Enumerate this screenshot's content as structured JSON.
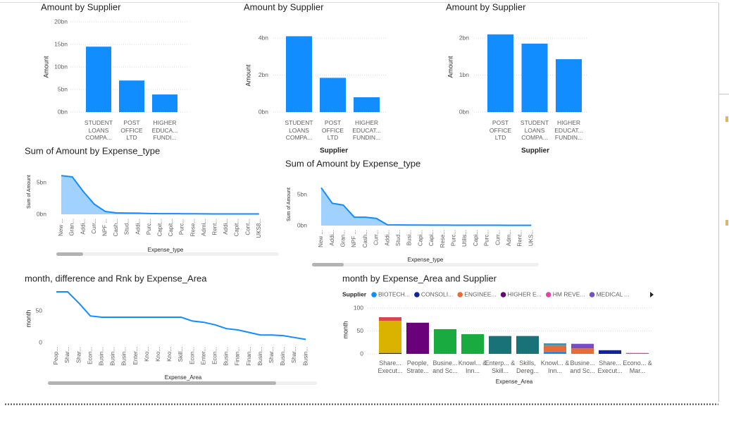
{
  "chart_data": [
    {
      "type": "bar",
      "title": "Amount by Supplier",
      "y_label": "Amount",
      "categories": [
        "STUDENT LOANS COMPA...",
        "POST OFFICE LTD",
        "HIGHER EDUCA... FUNDI..."
      ],
      "values": [
        14.5,
        7,
        3.9
      ],
      "color": "#118DFF",
      "ylim": [
        0,
        20
      ],
      "yticks": [
        {
          "value": 0,
          "label": "0bn"
        },
        {
          "value": 5,
          "label": "5bn"
        },
        {
          "value": 10,
          "label": "10bn"
        },
        {
          "value": 15,
          "label": "15bn"
        },
        {
          "value": 20,
          "label": "20bn"
        }
      ],
      "grid": true
    },
    {
      "type": "bar",
      "title": "Amount by Supplier",
      "y_label": "Amount",
      "x_label": "Supplier",
      "categories": [
        "STUDENT LOANS COMPA...",
        "POST OFFICE LTD",
        "HIGHER EDUCAT... FUNDIN..."
      ],
      "values": [
        4.1,
        1.85,
        0.8
      ],
      "color": "#118DFF",
      "ylim": [
        0,
        4.5
      ],
      "yticks": [
        {
          "value": 0,
          "label": "0bn"
        },
        {
          "value": 2,
          "label": "2bn"
        },
        {
          "value": 4,
          "label": "4bn"
        }
      ],
      "grid": true
    },
    {
      "type": "bar",
      "title": "Amount by Supplier",
      "y_label": "Amount",
      "x_label": "Supplier",
      "categories": [
        "POST OFFICE LTD",
        "STUDENT LOANS COMPA...",
        "HIGHER EDUCAT... FUNDIN..."
      ],
      "values": [
        2.1,
        1.85,
        1.43
      ],
      "color": "#118DFF",
      "ylim": [
        0,
        2.2
      ],
      "yticks": [
        {
          "value": 0,
          "label": "0bn"
        },
        {
          "value": 1,
          "label": "1bn"
        },
        {
          "value": 2,
          "label": "2bn"
        }
      ],
      "grid": true
    },
    {
      "type": "area",
      "title": "Sum of Amount by Expense_type",
      "y_label": "Sum of Amount",
      "x_label": "Expense_type",
      "categories": [
        "New ...",
        "Gran...",
        "Addi...",
        "Curr...",
        "NPF ...",
        "Cash...",
        "Stud...",
        "Addi...",
        "Purc...",
        "Capit...",
        "Capit...",
        "Purc...",
        "Rese...",
        "Admi...",
        "Rent...",
        "Addi...",
        "Capit...",
        "Cont...",
        "UKS8..."
      ],
      "values": [
        6.1,
        5.9,
        3.6,
        1.6,
        0.45,
        0.22,
        0.2,
        0.18,
        0.12,
        0.1,
        0.1,
        0.09,
        0.08,
        0.07,
        0.06,
        0.06,
        0.05,
        0.05,
        0.05
      ],
      "color": "#118DFF",
      "ylim": [
        0,
        6.5
      ],
      "yticks": [
        {
          "value": 0,
          "label": "0bn"
        },
        {
          "value": 5,
          "label": "5bn"
        }
      ],
      "grid": false
    },
    {
      "type": "area",
      "title": "Sum of Amount by Expense_type",
      "y_label": "Sum of Amount",
      "x_label": "Expense_type",
      "categories": [
        "New ...",
        "Addi...",
        "Gran...",
        "NPF ...",
        "Cash...",
        "Curr...",
        "Addi...",
        "Stud...",
        "Busi...",
        "Capi...",
        "Capi...",
        "Rese...",
        "Purc...",
        "Utilis...",
        "Capi...",
        "Purc...",
        "Curr...",
        "Adm...",
        "Rent...",
        "UKS..."
      ],
      "values": [
        6.1,
        3.6,
        3.3,
        1.35,
        1.35,
        1.15,
        0.12,
        0.1,
        0.09,
        0.08,
        0.07,
        0.07,
        0.06,
        0.06,
        0.05,
        0.05,
        0.05,
        0.04,
        0.04,
        0.04
      ],
      "color": "#118DFF",
      "ylim": [
        0,
        6.5
      ],
      "yticks": [
        {
          "value": 0,
          "label": "0bn"
        },
        {
          "value": 5,
          "label": "5bn"
        }
      ],
      "grid": false
    },
    {
      "type": "line",
      "title": "month, difference and Rnk by Expense_Area",
      "y_label": "month",
      "x_label": "Expense_Area",
      "categories": [
        "Peop...",
        "Shar...",
        "Shar...",
        "Econ...",
        "Busin...",
        "Busin...",
        "Busin...",
        "Enter...",
        "Kno...",
        "Kno...",
        "Kno...",
        "Skill...",
        "Econ...",
        "Enter...",
        "Econ...",
        "Busin...",
        "Finan...",
        "Finan...",
        "Busin...",
        "Shar...",
        "Busin...",
        "Shar...",
        "Busin..."
      ],
      "values": [
        80,
        80,
        62,
        42,
        40,
        40,
        40,
        40,
        40,
        40,
        40,
        40,
        34,
        32,
        28,
        22,
        20,
        16,
        12,
        12,
        11,
        8,
        5
      ],
      "color": "#118DFF",
      "ylim": [
        0,
        85
      ],
      "yticks": [
        0,
        50
      ],
      "grid": false
    },
    {
      "type": "bar",
      "stacked": true,
      "title": "month by Expense_Area and Supplier",
      "y_label": "month",
      "x_label": "Expense_Area",
      "legend_title": "Supplier",
      "categories": [
        "Share... Execut...",
        "People, Strate...",
        "Busine... and Sc...",
        "Knowl... & Inn...",
        "Enterp... & Skill...",
        "Skills, Dereg...",
        "Knowl... & Inn...",
        "Busine... and Sc...",
        "Share... Execut...",
        "Econo... & Mar..."
      ],
      "series": [
        {
          "name": "BIOTECH...",
          "color": "#118DFF",
          "values": [
            null,
            null,
            null,
            null,
            null,
            null,
            5,
            null,
            null,
            null
          ]
        },
        {
          "name": "CONSOLI...",
          "color": "#12239E",
          "values": [
            2,
            null,
            null,
            null,
            null,
            null,
            null,
            null,
            8,
            null
          ]
        },
        {
          "name": "ENGINEE...",
          "color": "#E66C37",
          "values": [
            null,
            null,
            null,
            null,
            null,
            null,
            13,
            12,
            null,
            null
          ]
        },
        {
          "name": "HIGHER E...",
          "color": "#6B007B",
          "values": [
            null,
            68,
            null,
            null,
            null,
            null,
            null,
            null,
            null,
            null
          ]
        },
        {
          "name": "HM REVE...",
          "color": "#E044A7",
          "values": [
            null,
            null,
            null,
            null,
            null,
            null,
            null,
            null,
            null,
            2
          ]
        },
        {
          "name": "MEDICAL ...",
          "color": "#744EC2",
          "values": [
            null,
            null,
            null,
            null,
            null,
            null,
            null,
            10,
            null,
            null
          ]
        },
        {
          "color": "#D9B300",
          "values": [
            70,
            null,
            null,
            null,
            null,
            null,
            null,
            null,
            null,
            null
          ]
        },
        {
          "color": "#D64550",
          "values": [
            8,
            null,
            null,
            null,
            null,
            null,
            null,
            null,
            null,
            null
          ]
        },
        {
          "color": "#1AAB40",
          "values": [
            null,
            null,
            54,
            43,
            null,
            null,
            null,
            null,
            null,
            null
          ]
        },
        {
          "color": "#197278",
          "values": [
            null,
            null,
            null,
            null,
            39,
            39,
            null,
            null,
            null,
            null
          ]
        },
        {
          "color": "#3599B8",
          "values": [
            null,
            null,
            null,
            null,
            null,
            null,
            5,
            null,
            null,
            null
          ]
        }
      ],
      "ylim": [
        0,
        100
      ],
      "yticks": [
        0,
        50,
        100
      ],
      "grid": true
    }
  ]
}
